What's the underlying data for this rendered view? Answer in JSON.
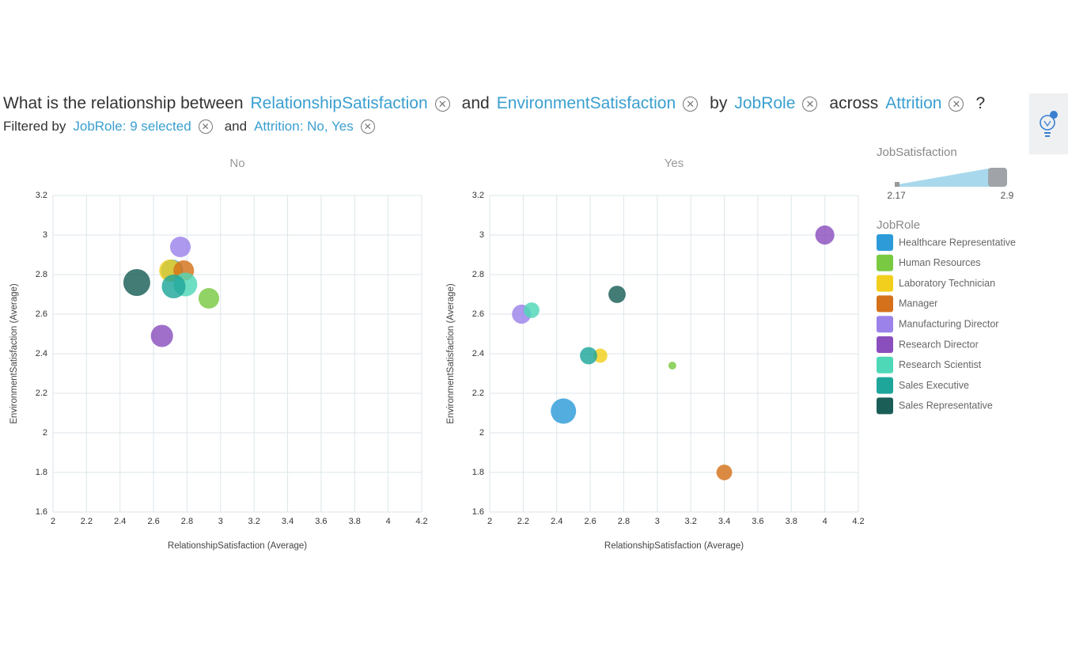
{
  "header": {
    "question": [
      "What is the relationship between",
      "RelationshipSatisfaction",
      "and",
      "EnvironmentSatisfaction",
      "by",
      "JobRole",
      "across",
      "Attrition",
      "?"
    ],
    "filter": [
      "Filtered by",
      "JobRole: 9 selected",
      "and",
      "Attrition: No, Yes"
    ]
  },
  "size_legend": {
    "title": "JobSatisfaction",
    "min": 2.17,
    "max": 2.9
  },
  "legend_title": "JobRole",
  "chart_data": [
    {
      "type": "scatter",
      "title": "No",
      "x_label": "RelationshipSatisfaction (Average)",
      "y_label": "EnvironmentSatisfaction (Average)",
      "xlim": [
        2,
        4.2
      ],
      "xticks": [
        2,
        2.2,
        2.4,
        2.6,
        2.8,
        3,
        3.2,
        3.4,
        3.6,
        3.8,
        4,
        4.2
      ],
      "ylim": [
        1.6,
        3.2
      ],
      "yticks": [
        1.6,
        1.8,
        2,
        2.2,
        2.4,
        2.6,
        2.8,
        3,
        3.2
      ],
      "grid": true,
      "series": [
        {
          "name": "Healthcare Representative",
          "color": "#2d9bd8",
          "x": [
            2.71
          ],
          "values": [
            2.82
          ],
          "sizes": [
            2.72
          ]
        },
        {
          "name": "Human Resources",
          "color": "#7ac943",
          "x": [
            2.93
          ],
          "values": [
            2.68
          ],
          "sizes": [
            2.66
          ]
        },
        {
          "name": "Laboratory Technician",
          "color": "#f2cf1d",
          "x": [
            2.7
          ],
          "values": [
            2.82
          ],
          "sizes": [
            2.72
          ]
        },
        {
          "name": "Manager",
          "color": "#d4711a",
          "x": [
            2.78
          ],
          "values": [
            2.82
          ],
          "sizes": [
            2.66
          ]
        },
        {
          "name": "Manufacturing Director",
          "color": "#9b82ea",
          "x": [
            2.76
          ],
          "values": [
            2.94
          ],
          "sizes": [
            2.66
          ]
        },
        {
          "name": "Research Director",
          "color": "#8a4fbd",
          "x": [
            2.65
          ],
          "values": [
            2.49
          ],
          "sizes": [
            2.72
          ]
        },
        {
          "name": "Research Scientist",
          "color": "#4fd8b7",
          "x": [
            2.79
          ],
          "values": [
            2.75
          ],
          "sizes": [
            2.78
          ]
        },
        {
          "name": "Sales Executive",
          "color": "#1ea69b",
          "x": [
            2.72
          ],
          "values": [
            2.74
          ],
          "sizes": [
            2.78
          ]
        },
        {
          "name": "Sales Representative",
          "color": "#1a5e57",
          "x": [
            2.5
          ],
          "values": [
            2.76
          ],
          "sizes": [
            2.9
          ]
        }
      ]
    },
    {
      "type": "scatter",
      "title": "Yes",
      "x_label": "RelationshipSatisfaction (Average)",
      "y_label": "EnvironmentSatisfaction (Average)",
      "xlim": [
        2,
        4.2
      ],
      "xticks": [
        2,
        2.2,
        2.4,
        2.6,
        2.8,
        3,
        3.2,
        3.4,
        3.6,
        3.8,
        4,
        4.2
      ],
      "ylim": [
        1.6,
        3.2
      ],
      "yticks": [
        1.6,
        1.8,
        2,
        2.2,
        2.4,
        2.6,
        2.8,
        3,
        3.2
      ],
      "grid": true,
      "series": [
        {
          "name": "Healthcare Representative",
          "color": "#2d9bd8",
          "x": [
            2.44
          ],
          "values": [
            2.11
          ],
          "sizes": [
            2.84
          ]
        },
        {
          "name": "Human Resources",
          "color": "#7ac943",
          "x": [
            3.09
          ],
          "values": [
            2.34
          ],
          "sizes": [
            2.17
          ]
        },
        {
          "name": "Laboratory Technician",
          "color": "#f2cf1d",
          "x": [
            2.66
          ],
          "values": [
            2.39
          ],
          "sizes": [
            2.41
          ]
        },
        {
          "name": "Manager",
          "color": "#d4711a",
          "x": [
            3.4
          ],
          "values": [
            1.8
          ],
          "sizes": [
            2.47
          ]
        },
        {
          "name": "Manufacturing Director",
          "color": "#9b82ea",
          "x": [
            2.19
          ],
          "values": [
            2.6
          ],
          "sizes": [
            2.6
          ]
        },
        {
          "name": "Research Director",
          "color": "#8a4fbd",
          "x": [
            4
          ],
          "values": [
            3
          ],
          "sizes": [
            2.6
          ]
        },
        {
          "name": "Research Scientist",
          "color": "#4fd8b7",
          "x": [
            2.25
          ],
          "values": [
            2.62
          ],
          "sizes": [
            2.47
          ]
        },
        {
          "name": "Sales Executive",
          "color": "#1ea69b",
          "x": [
            2.59
          ],
          "values": [
            2.39
          ],
          "sizes": [
            2.53
          ]
        },
        {
          "name": "Sales Representative",
          "color": "#1a5e57",
          "x": [
            2.76
          ],
          "values": [
            2.7
          ],
          "sizes": [
            2.53
          ]
        }
      ]
    }
  ]
}
